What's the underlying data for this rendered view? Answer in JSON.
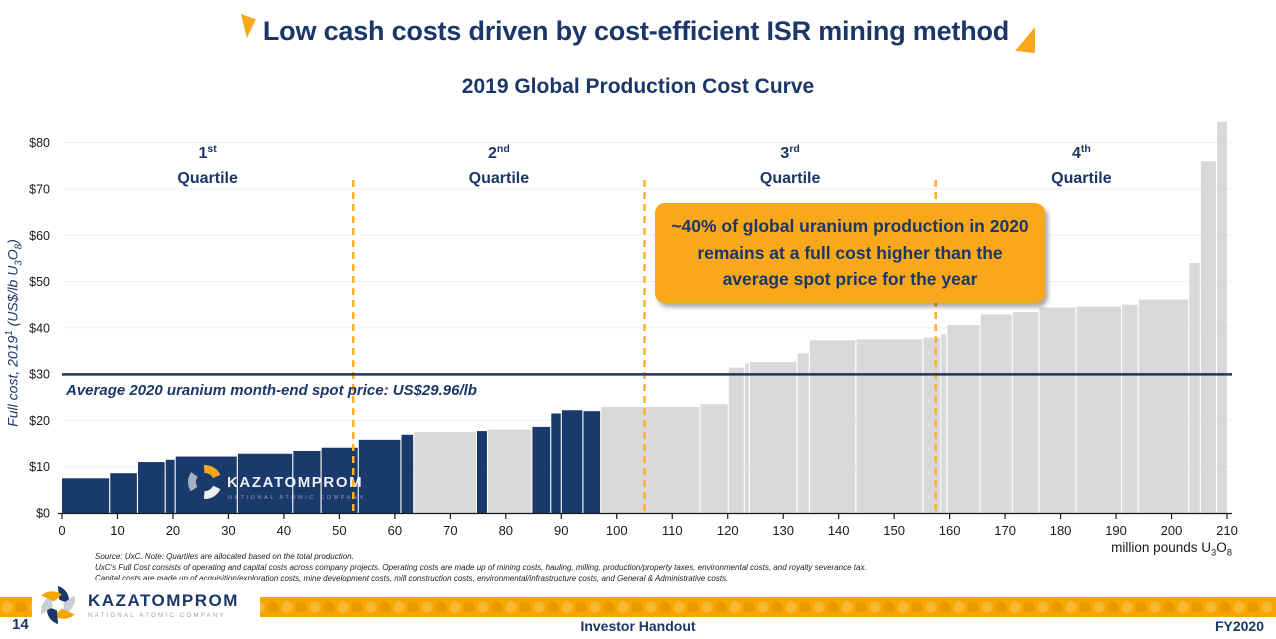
{
  "theme": {
    "navy": "#1B3768",
    "bar_navy": "#1A3A6B",
    "bar_gray": "#D9D9D9",
    "orange": "#F7A600",
    "callout_orange": "#F9A71B",
    "dash_orange": "#FFAE2E",
    "grid": "#EFEFEF",
    "silver": "#C8CDD6"
  },
  "header": {
    "title": "Low cash costs driven by cost-efficient ISR mining method",
    "subtitle": "2019 Global Production Cost Curve"
  },
  "axis": {
    "y_label_main": "Full cost, 2019",
    "y_label_sup": "1",
    "y_label_mid": " (US$/lb U",
    "y_label_sub3": "3",
    "y_label_o": "O",
    "y_label_sub8": "8",
    "y_label_end": ")",
    "x_unit_main": "million pounds U",
    "x_unit_sub3": "3",
    "x_unit_o": "O",
    "x_unit_sub8": "8"
  },
  "callout": {
    "text": "~40% of global uranium production in 2020 remains at a full cost higher than the average spot price for the year"
  },
  "watermark": {
    "name": "KAZATOMPROM",
    "tagline": "NATIONAL ATOMIC COMPANY"
  },
  "chart_data": {
    "type": "bar",
    "title": "2019 Global Production Cost Curve",
    "xlabel": "million pounds U3O8",
    "ylabel": "Full cost, 2019 (US$/lb U3O8)",
    "xlim": [
      0,
      210
    ],
    "ylim": [
      0,
      85
    ],
    "x_ticks": [
      0,
      10,
      20,
      30,
      40,
      50,
      60,
      70,
      80,
      90,
      100,
      110,
      120,
      130,
      140,
      150,
      160,
      170,
      180,
      190,
      200,
      210
    ],
    "y_tick_values": [
      0,
      10,
      20,
      30,
      40,
      50,
      60,
      70,
      80
    ],
    "y_tick_labels": [
      "$0",
      "$10",
      "$20",
      "$30",
      "$40",
      "$50",
      "$60",
      "$70",
      "$80"
    ],
    "grid": "horizontal-light",
    "quartile_boundaries": [
      52.5,
      105,
      157.5
    ],
    "quartiles": [
      {
        "ordinal": "1",
        "suffix": "st",
        "word": "Quartile",
        "center_x": 26.25
      },
      {
        "ordinal": "2",
        "suffix": "nd",
        "word": "Quartile",
        "center_x": 78.75
      },
      {
        "ordinal": "3",
        "suffix": "rd",
        "word": "Quartile",
        "center_x": 131.25
      },
      {
        "ordinal": "4",
        "suffix": "th",
        "word": "Quartile",
        "center_x": 183.75
      }
    ],
    "spot_price": {
      "value": 29.96,
      "label": "Average 2020 uranium month-end spot price: US$29.96/lb"
    },
    "bars": [
      {
        "x0": 0.0,
        "x1": 8.5,
        "cost": 7.5,
        "color": "navy"
      },
      {
        "x0": 8.7,
        "x1": 13.5,
        "cost": 8.6,
        "color": "navy"
      },
      {
        "x0": 13.7,
        "x1": 18.5,
        "cost": 11.0,
        "color": "navy"
      },
      {
        "x0": 18.7,
        "x1": 20.3,
        "cost": 11.5,
        "color": "navy"
      },
      {
        "x0": 20.5,
        "x1": 31.5,
        "cost": 12.2,
        "color": "navy"
      },
      {
        "x0": 31.7,
        "x1": 41.5,
        "cost": 12.8,
        "color": "navy"
      },
      {
        "x0": 41.7,
        "x1": 46.6,
        "cost": 13.4,
        "color": "navy"
      },
      {
        "x0": 46.8,
        "x1": 53.3,
        "cost": 14.1,
        "color": "navy"
      },
      {
        "x0": 53.5,
        "x1": 61.0,
        "cost": 15.8,
        "color": "navy"
      },
      {
        "x0": 61.2,
        "x1": 63.3,
        "cost": 16.9,
        "color": "navy"
      },
      {
        "x0": 63.5,
        "x1": 74.6,
        "cost": 17.5,
        "color": "gray"
      },
      {
        "x0": 74.8,
        "x1": 76.6,
        "cost": 17.7,
        "color": "navy"
      },
      {
        "x0": 76.8,
        "x1": 84.6,
        "cost": 18.0,
        "color": "gray"
      },
      {
        "x0": 84.8,
        "x1": 88.0,
        "cost": 18.6,
        "color": "navy"
      },
      {
        "x0": 88.2,
        "x1": 89.9,
        "cost": 21.5,
        "color": "navy"
      },
      {
        "x0": 90.1,
        "x1": 93.8,
        "cost": 22.2,
        "color": "navy"
      },
      {
        "x0": 94.0,
        "x1": 97.0,
        "cost": 22.0,
        "color": "navy"
      },
      {
        "x0": 97.2,
        "x1": 114.9,
        "cost": 22.9,
        "color": "gray"
      },
      {
        "x0": 115.1,
        "x1": 120.0,
        "cost": 23.5,
        "color": "gray"
      },
      {
        "x0": 120.2,
        "x1": 122.9,
        "cost": 31.4,
        "color": "gray"
      },
      {
        "x0": 123.1,
        "x1": 123.8,
        "cost": 32.3,
        "color": "gray"
      },
      {
        "x0": 124.0,
        "x1": 132.4,
        "cost": 32.6,
        "color": "gray"
      },
      {
        "x0": 132.6,
        "x1": 134.6,
        "cost": 34.5,
        "color": "gray"
      },
      {
        "x0": 134.8,
        "x1": 143.0,
        "cost": 37.3,
        "color": "gray"
      },
      {
        "x0": 143.2,
        "x1": 155.1,
        "cost": 37.5,
        "color": "gray"
      },
      {
        "x0": 155.3,
        "x1": 158.3,
        "cost": 37.9,
        "color": "gray"
      },
      {
        "x0": 158.5,
        "x1": 159.4,
        "cost": 38.6,
        "color": "gray"
      },
      {
        "x0": 159.6,
        "x1": 165.4,
        "cost": 40.6,
        "color": "gray"
      },
      {
        "x0": 165.6,
        "x1": 171.2,
        "cost": 42.9,
        "color": "gray"
      },
      {
        "x0": 171.4,
        "x1": 176.0,
        "cost": 43.4,
        "color": "gray"
      },
      {
        "x0": 176.2,
        "x1": 182.7,
        "cost": 44.4,
        "color": "gray"
      },
      {
        "x0": 182.9,
        "x1": 190.9,
        "cost": 44.6,
        "color": "gray"
      },
      {
        "x0": 191.1,
        "x1": 193.9,
        "cost": 45.0,
        "color": "gray"
      },
      {
        "x0": 194.1,
        "x1": 203.0,
        "cost": 46.1,
        "color": "gray"
      },
      {
        "x0": 203.2,
        "x1": 205.1,
        "cost": 54.0,
        "color": "gray"
      },
      {
        "x0": 205.3,
        "x1": 208.0,
        "cost": 76.0,
        "color": "gray"
      },
      {
        "x0": 208.2,
        "x1": 210.0,
        "cost": 84.5,
        "color": "gray"
      }
    ]
  },
  "footer": {
    "source_lines": [
      "Source: UxC. Note: Quartiles are allocated based on the total production.",
      "UxC's Full Cost consists of operating and capital costs across company projects. Operating costs are made up of mining costs, hauling, milling, production/property taxes, environmental costs, and royalty severance tax.",
      "Capital costs are made up of acquisition/exploration costs, mine development costs, mill construction costs, environmental/infrastructure costs, and General & Administrative costs."
    ],
    "logo": {
      "name": "KAZATOMPROM",
      "tagline": "NATIONAL ATOMIC COMPANY"
    },
    "page_number": "14",
    "center_text": "Investor Handout",
    "right_text": "FY2020"
  }
}
